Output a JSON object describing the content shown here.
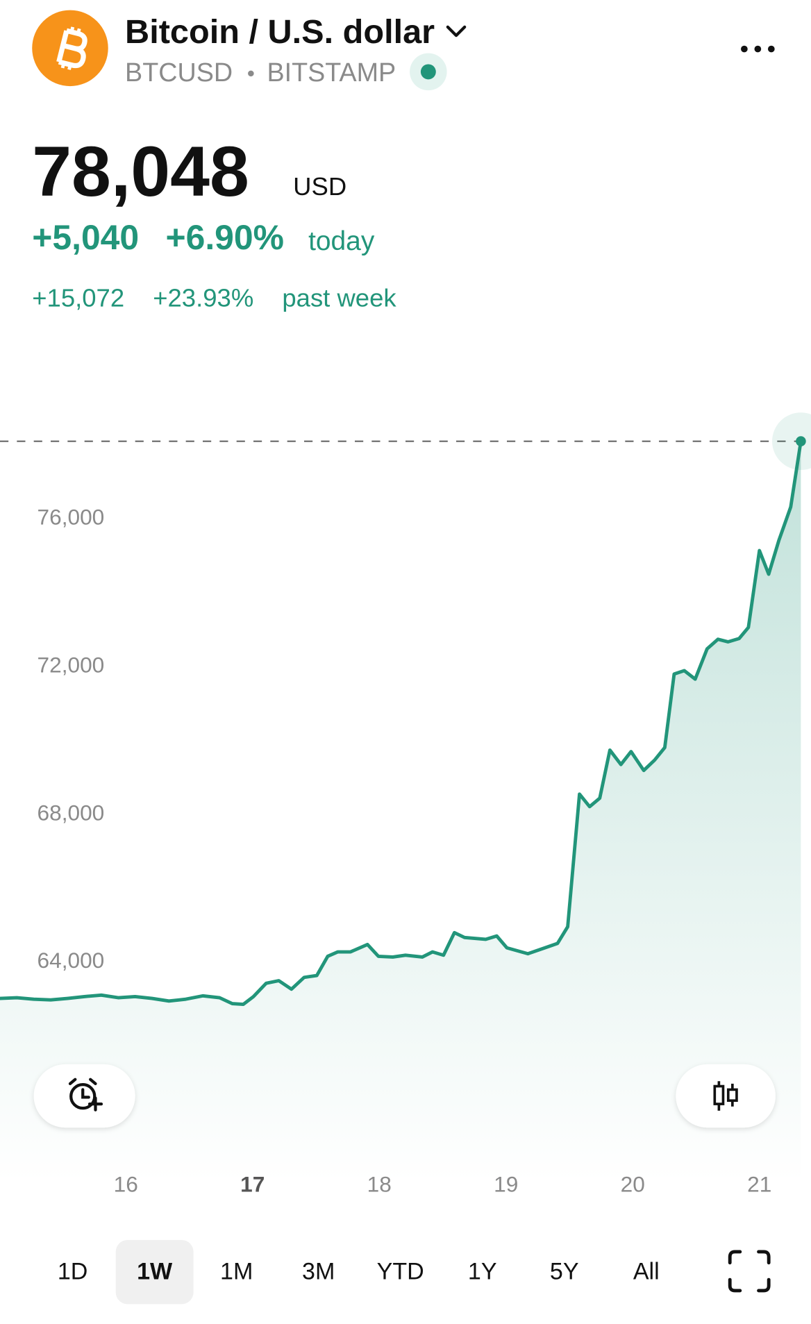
{
  "header": {
    "title": "Bitcoin / U.S. dollar",
    "symbol": "BTCUSD",
    "exchange": "BITSTAMP"
  },
  "quote": {
    "price": "78,048",
    "currency": "USD",
    "change_today": "+5,040",
    "change_today_pct": "+6.90%",
    "today_label": "today",
    "change_week": "+15,072",
    "change_week_pct": "+23.93%",
    "week_label": "past week"
  },
  "chart_data": {
    "type": "line",
    "color": "#22957a",
    "grid": false,
    "x": [
      15.007,
      15.14,
      15.273,
      15.407,
      15.54,
      15.673,
      15.807,
      15.94,
      16.073,
      16.207,
      16.34,
      16.473,
      16.607,
      16.74,
      16.84,
      16.927,
      17.007,
      17.107,
      17.207,
      17.307,
      17.407,
      17.507,
      17.593,
      17.673,
      17.773,
      17.907,
      17.993,
      18.107,
      18.207,
      18.34,
      18.42,
      18.507,
      18.593,
      18.673,
      18.84,
      18.927,
      19.007,
      19.173,
      19.307,
      19.407,
      19.487,
      19.58,
      19.66,
      19.74,
      19.82,
      19.907,
      19.987,
      20.087,
      20.173,
      20.253,
      20.327,
      20.407,
      20.493,
      20.587,
      20.673,
      20.753,
      20.84,
      20.913,
      21.0,
      21.073,
      21.153,
      21.247,
      21.327
    ],
    "values": [
      62970,
      62990,
      62950,
      62930,
      62970,
      63020,
      63060,
      62990,
      63020,
      62970,
      62900,
      62950,
      63040,
      62990,
      62830,
      62810,
      63020,
      63380,
      63450,
      63220,
      63540,
      63590,
      64110,
      64230,
      64230,
      64430,
      64110,
      64090,
      64140,
      64090,
      64230,
      64140,
      64750,
      64620,
      64570,
      64660,
      64340,
      64180,
      64340,
      64460,
      64910,
      68500,
      68160,
      68390,
      69690,
      69300,
      69650,
      69140,
      69420,
      69760,
      71750,
      71840,
      71610,
      72430,
      72690,
      72620,
      72710,
      73010,
      75090,
      74450,
      75360,
      76270,
      78048
    ],
    "xlim": [
      15.007,
      21.407
    ],
    "xticks": [
      16,
      17,
      18,
      19,
      20,
      21
    ],
    "ylim": [
      58000,
      79000
    ],
    "yticks": [
      {
        "value": 64000,
        "label": "64,000"
      },
      {
        "value": 68000,
        "label": "68,000"
      },
      {
        "value": 72000,
        "label": "72,000"
      },
      {
        "value": 76000,
        "label": "76,000"
      }
    ]
  },
  "time_ranges": [
    "1D",
    "1W",
    "1M",
    "3M",
    "YTD",
    "1Y",
    "5Y",
    "All"
  ]
}
